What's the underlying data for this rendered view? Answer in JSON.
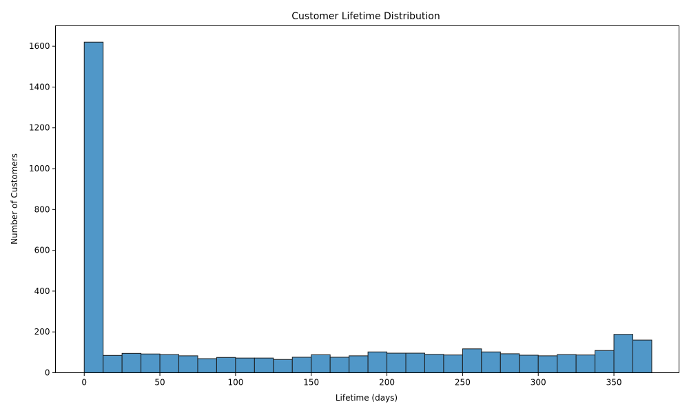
{
  "chart_data": {
    "type": "bar",
    "title": "Customer Lifetime Distribution",
    "xlabel": "Lifetime (days)",
    "ylabel": "Number of Customers",
    "xlim": [
      -19,
      393
    ],
    "ylim": [
      0,
      1700
    ],
    "grid": false,
    "bar_color": "#5097c8",
    "edge_color": "#1a1a1a",
    "bin_start": 0,
    "bin_width": 12.5,
    "values": [
      1620,
      85,
      95,
      92,
      89,
      83,
      69,
      75,
      72,
      72,
      65,
      76,
      88,
      76,
      83,
      102,
      96,
      96,
      90,
      87,
      117,
      102,
      93,
      86,
      83,
      89,
      87,
      109,
      188,
      160
    ],
    "x_ticks": [
      0,
      50,
      100,
      150,
      200,
      250,
      300,
      350
    ],
    "y_ticks": [
      0,
      200,
      400,
      600,
      800,
      1000,
      1200,
      1400,
      1600
    ]
  }
}
